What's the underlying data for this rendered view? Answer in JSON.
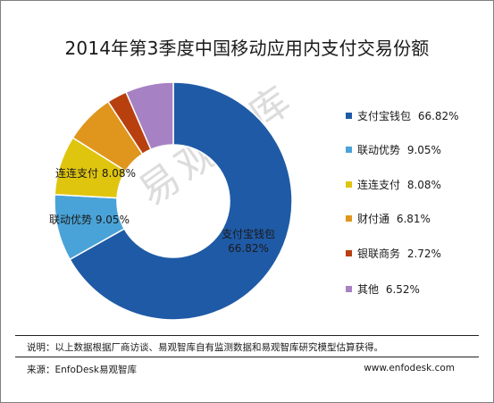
{
  "chart_data": {
    "type": "pie",
    "variant": "donut",
    "title": "2014年第3季度中国移动应用内支付交易份额",
    "categories": [
      "支付宝钱包",
      "联动优势",
      "连连支付",
      "财付通",
      "银联商务",
      "其他"
    ],
    "values": [
      66.82,
      9.05,
      8.08,
      6.81,
      2.72,
      6.52
    ],
    "value_labels": [
      "66.82%",
      "9.05%",
      "8.08%",
      "6.81%",
      "2.72%",
      "6.52%"
    ],
    "colors": [
      "#1f5aa6",
      "#4aa3d8",
      "#e0c50f",
      "#e0951c",
      "#b8400f",
      "#a682c4"
    ],
    "legend_position": "right",
    "slice_labels": [
      {
        "name": "支付宝钱包",
        "value": "66.82%"
      },
      {
        "name": "联动优势",
        "value": "9.05%"
      },
      {
        "name": "连连支付",
        "value": "8.08%"
      }
    ]
  },
  "watermark": "易观智库",
  "note": "说明：以上数据根据厂商访谈、易观智库自有监测数据和易观智库研究模型估算获得。",
  "source": "来源：EnfoDesk易观智库",
  "website": "www.enfodesk.com"
}
